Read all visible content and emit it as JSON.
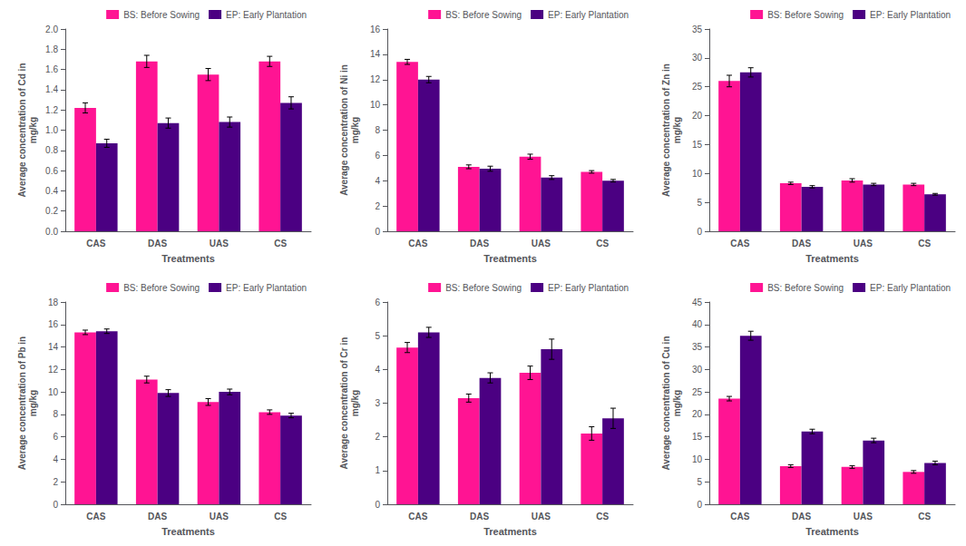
{
  "chart_data": [
    {
      "type": "bar",
      "categories": [
        "CAS",
        "DAS",
        "UAS",
        "CS"
      ],
      "xlabel": "Treatments",
      "ylabel": "Average concentration of Cd in\nmg/kg",
      "series": [
        {
          "name": "BS: Before Sowing",
          "color": "#FF1493",
          "values": [
            1.22,
            1.68,
            1.55,
            1.68
          ],
          "errors": [
            0.05,
            0.06,
            0.06,
            0.05
          ]
        },
        {
          "name": "EP: Early Plantation",
          "color": "#4B0082",
          "values": [
            0.87,
            1.07,
            1.08,
            1.27
          ],
          "errors": [
            0.04,
            0.05,
            0.05,
            0.06
          ]
        }
      ],
      "ylim": [
        0,
        2
      ],
      "yticks": [
        {
          "value": 0,
          "label": "0.0"
        },
        0.2,
        0.4,
        0.6,
        0.8,
        {
          "value": 1.0,
          "label": "1.0"
        },
        1.2,
        1.4,
        1.6,
        1.8,
        {
          "value": 2.0,
          "label": "2.0"
        }
      ],
      "grid": false,
      "legend": "upper right"
    },
    {
      "type": "bar",
      "categories": [
        "CAS",
        "DAS",
        "UAS",
        "CS"
      ],
      "xlabel": "Treatments",
      "ylabel": "Average concentration of Ni in\nmg/kg",
      "series": [
        {
          "name": "BS: Before Sowing",
          "color": "#FF1493",
          "values": [
            13.4,
            5.1,
            5.9,
            4.7
          ],
          "errors": [
            0.2,
            0.15,
            0.2,
            0.1
          ]
        },
        {
          "name": "EP: Early Plantation",
          "color": "#4B0082",
          "values": [
            12.0,
            4.95,
            4.25,
            4.0
          ],
          "errors": [
            0.25,
            0.2,
            0.15,
            0.1
          ]
        }
      ],
      "ylim": [
        0,
        16
      ],
      "yticks": [
        0,
        2,
        4,
        6,
        8,
        10,
        12,
        14,
        16
      ],
      "grid": false,
      "legend": "upper right"
    },
    {
      "type": "bar",
      "categories": [
        "CAS",
        "DAS",
        "UAS",
        "CS"
      ],
      "xlabel": "Treatments",
      "ylabel": "Average concentration of Zn in\nmg/kg",
      "series": [
        {
          "name": "BS: Before Sowing",
          "color": "#FF1493",
          "values": [
            26.0,
            8.3,
            8.8,
            8.1
          ],
          "errors": [
            1.0,
            0.2,
            0.3,
            0.2
          ]
        },
        {
          "name": "EP: Early Plantation",
          "color": "#4B0082",
          "values": [
            27.5,
            7.7,
            8.1,
            6.4
          ],
          "errors": [
            0.8,
            0.2,
            0.2,
            0.15
          ]
        }
      ],
      "ylim": [
        0,
        35
      ],
      "yticks": [
        0,
        5,
        10,
        15,
        20,
        25,
        30,
        35
      ],
      "grid": false,
      "legend": "upper right"
    },
    {
      "type": "bar",
      "categories": [
        "CAS",
        "DAS",
        "UAS",
        "CS"
      ],
      "xlabel": "Treatments",
      "ylabel": "Average concentration of Pb in\nmg/kg",
      "series": [
        {
          "name": "BS: Before Sowing",
          "color": "#FF1493",
          "values": [
            15.3,
            11.1,
            9.1,
            8.2
          ],
          "errors": [
            0.2,
            0.3,
            0.3,
            0.2
          ]
        },
        {
          "name": "EP: Early Plantation",
          "color": "#4B0082",
          "values": [
            15.4,
            9.9,
            10.0,
            7.9
          ],
          "errors": [
            0.2,
            0.3,
            0.25,
            0.2
          ]
        }
      ],
      "ylim": [
        0,
        18
      ],
      "yticks": [
        0,
        2,
        4,
        6,
        8,
        10,
        12,
        14,
        16,
        18
      ],
      "grid": false,
      "legend": "upper right"
    },
    {
      "type": "bar",
      "categories": [
        "CAS",
        "DAS",
        "UAS",
        "CS"
      ],
      "xlabel": "Treatments",
      "ylabel": "Average concentration of Cr in\nmg/kg",
      "series": [
        {
          "name": "BS: Before Sowing",
          "color": "#FF1493",
          "values": [
            4.65,
            3.15,
            3.9,
            2.1
          ],
          "errors": [
            0.15,
            0.12,
            0.2,
            0.2
          ]
        },
        {
          "name": "EP: Early Plantation",
          "color": "#4B0082",
          "values": [
            5.1,
            3.75,
            4.6,
            2.55
          ],
          "errors": [
            0.15,
            0.15,
            0.3,
            0.3
          ]
        }
      ],
      "ylim": [
        0,
        6
      ],
      "yticks": [
        0,
        1,
        2,
        3,
        4,
        5,
        6
      ],
      "grid": false,
      "legend": "upper right"
    },
    {
      "type": "bar",
      "categories": [
        "CAS",
        "DAS",
        "UAS",
        "CS"
      ],
      "xlabel": "Treatments",
      "ylabel": "Average concentration of Cu in\nmg/kg",
      "series": [
        {
          "name": "BS: Before Sowing",
          "color": "#FF1493",
          "values": [
            23.5,
            8.5,
            8.3,
            7.2
          ],
          "errors": [
            0.5,
            0.3,
            0.3,
            0.3
          ]
        },
        {
          "name": "EP: Early Plantation",
          "color": "#4B0082",
          "values": [
            37.5,
            16.2,
            14.2,
            9.2
          ],
          "errors": [
            1.0,
            0.5,
            0.5,
            0.4
          ]
        }
      ],
      "ylim": [
        0,
        45
      ],
      "yticks": [
        0,
        5,
        10,
        15,
        20,
        25,
        30,
        35,
        40,
        45
      ],
      "grid": false,
      "legend": "upper right"
    }
  ]
}
